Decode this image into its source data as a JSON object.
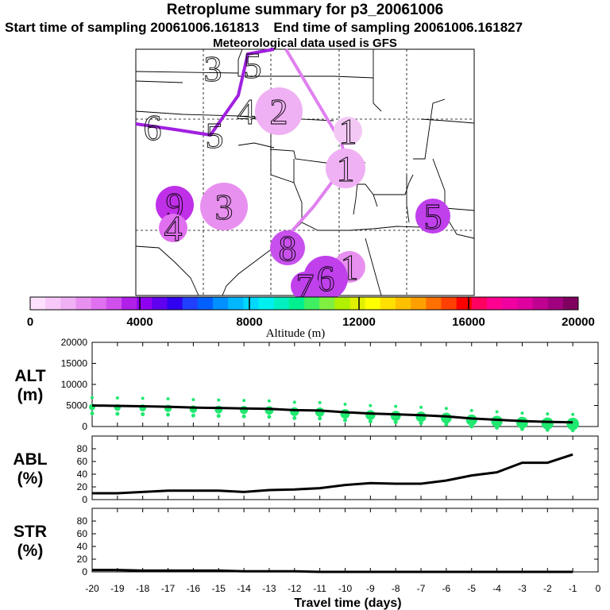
{
  "header": {
    "title": "Retroplume summary for p3_20061006",
    "start_label": "Start time of sampling 20061006.161813",
    "end_label": "End time of sampling 20061006.161827",
    "met_label": "Meteorological data used is GFS"
  },
  "map": {
    "trajectory_color": "#e080f0",
    "trajectory_dark_color": "#a020e0",
    "markers": [
      {
        "label": "3",
        "lon_idx": 0,
        "color": "none",
        "r": 0
      },
      {
        "label": "5",
        "color": "none"
      },
      {
        "label": "4",
        "color": "none"
      },
      {
        "label": "2",
        "color": "#f0b0f4"
      },
      {
        "label": "6",
        "color": "none"
      },
      {
        "label": "5",
        "color": "none"
      },
      {
        "label": "1",
        "color": "#f4c8f4"
      },
      {
        "label": "1",
        "color": "#f0b0f4"
      },
      {
        "label": "9",
        "color": "#c030e8"
      },
      {
        "label": "3",
        "color": "#e890f0"
      },
      {
        "label": "4",
        "color": "#e070f0"
      },
      {
        "label": "5",
        "color": "#c040ec"
      },
      {
        "label": "8",
        "color": "#c850ec"
      },
      {
        "label": "1",
        "color": "#e890f0"
      },
      {
        "label": "6",
        "color": "#c040ec"
      },
      {
        "label": "7",
        "color": "#c040ec"
      }
    ]
  },
  "colorbar": {
    "ticks": [
      "0",
      "4000",
      "8000",
      "12000",
      "16000",
      "20000"
    ],
    "label": "Altitude (m)",
    "colors": [
      "#ffe0ff",
      "#f8c8f8",
      "#f0b0f4",
      "#e890f0",
      "#e070f0",
      "#d050ec",
      "#b020e8",
      "#9000f0",
      "#6000f0",
      "#3000f0",
      "#2040ff",
      "#0060ff",
      "#0090ff",
      "#00b8ff",
      "#00d8ff",
      "#00f0f0",
      "#00f0c0",
      "#00f090",
      "#40f060",
      "#80f040",
      "#b0f000",
      "#e0f000",
      "#ffff00",
      "#ffe000",
      "#ffc000",
      "#ffa000",
      "#ff7000",
      "#ff4000",
      "#ff0000",
      "#ff0060",
      "#ff0090",
      "#f000a0",
      "#e000a0",
      "#c00090",
      "#a00080",
      "#800060"
    ]
  },
  "chart_data": [
    {
      "type": "line",
      "name": "ALT",
      "ylabel": "ALT (m)",
      "ylim": [
        0,
        20000
      ],
      "yticks": [
        "20000",
        "15000",
        "10000",
        "5000",
        "0"
      ],
      "x": [
        -20,
        -19,
        -18,
        -17,
        -16,
        -15,
        -14,
        -13,
        -12,
        -11,
        -10,
        -9,
        -8,
        -7,
        -6,
        -5,
        -4,
        -3,
        -2,
        -1
      ],
      "values": [
        5000,
        4900,
        4800,
        4700,
        4500,
        4400,
        4300,
        4200,
        3900,
        3800,
        3400,
        3100,
        2900,
        2700,
        2400,
        1900,
        1600,
        1300,
        1100,
        1000
      ],
      "dot_color": "#20e870"
    },
    {
      "type": "line",
      "name": "ABL",
      "ylabel": "ABL (%)",
      "ylim": [
        0,
        100
      ],
      "yticks": [
        "80",
        "60",
        "40",
        "20",
        "0"
      ],
      "x": [
        -20,
        -19,
        -18,
        -17,
        -16,
        -15,
        -14,
        -13,
        -12,
        -11,
        -10,
        -9,
        -8,
        -7,
        -6,
        -5,
        -4,
        -3,
        -2,
        -1
      ],
      "values": [
        10,
        10,
        12,
        14,
        14,
        14,
        12,
        15,
        16,
        18,
        23,
        26,
        25,
        25,
        30,
        38,
        43,
        58,
        58,
        71
      ]
    },
    {
      "type": "line",
      "name": "STR",
      "ylabel": "STR (%)",
      "ylim": [
        0,
        100
      ],
      "yticks": [
        "80",
        "60",
        "40",
        "20",
        "0"
      ],
      "x": [
        -20,
        -19,
        -18,
        -17,
        -16,
        -15,
        -14,
        -13,
        -12,
        -11,
        -10,
        -9,
        -8,
        -7,
        -6,
        -5,
        -4,
        -3,
        -2,
        -1
      ],
      "values": [
        3,
        3,
        2,
        2,
        2,
        2,
        1,
        1,
        1,
        0,
        0,
        0,
        0,
        0,
        0,
        0,
        0,
        0,
        0,
        0
      ]
    }
  ],
  "xaxis": {
    "ticks": [
      "-20",
      "-19",
      "-18",
      "-17",
      "-16",
      "-15",
      "-14",
      "-13",
      "-12",
      "-11",
      "-10",
      "-9",
      "-8",
      "-7",
      "-6",
      "-5",
      "-4",
      "-3",
      "-2",
      "-1",
      "0"
    ],
    "label": "Travel time (days)"
  }
}
